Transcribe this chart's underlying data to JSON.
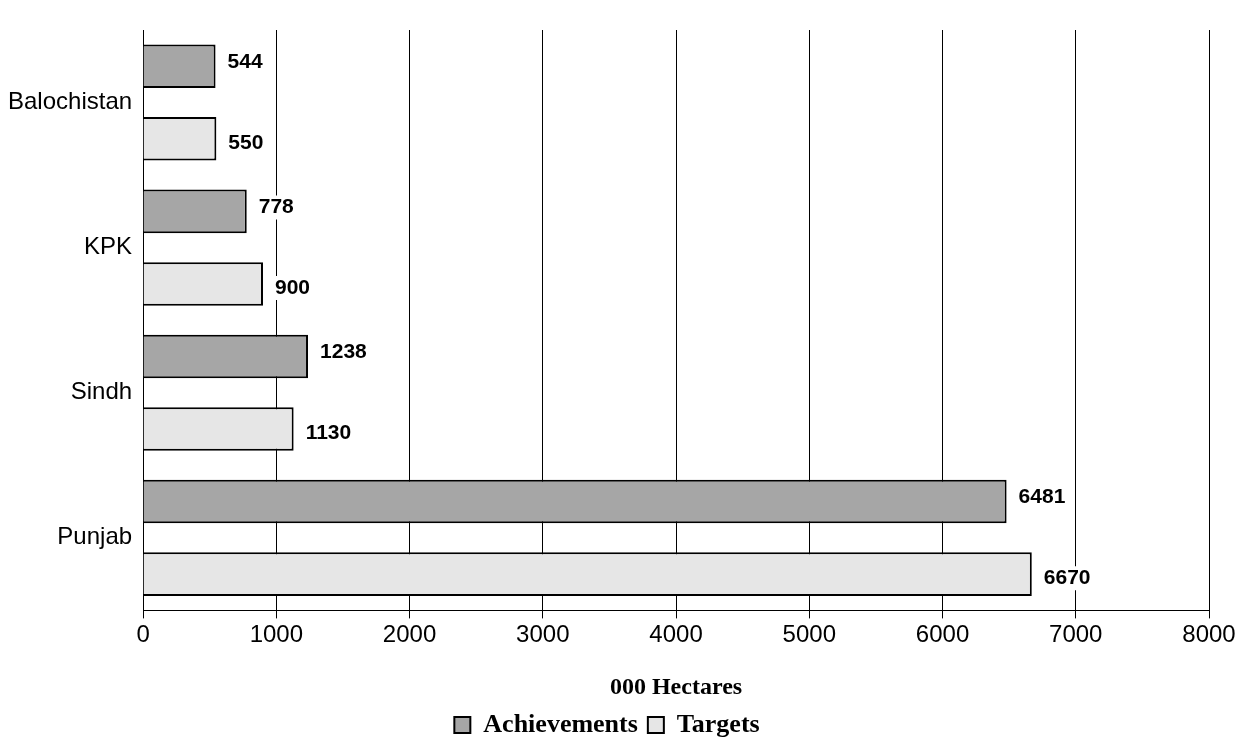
{
  "chart_data": {
    "type": "bar",
    "orientation": "horizontal",
    "xlabel": "000 Hectares",
    "categories": [
      "Balochistan",
      "KPK",
      "Sindh",
      "Punjab"
    ],
    "series": [
      {
        "name": "Achievements",
        "color": "#a6a6a6",
        "values": [
          544,
          778,
          1238,
          6481
        ]
      },
      {
        "name": "Targets",
        "color": "#e6e6e6",
        "values": [
          550,
          900,
          1130,
          6670
        ]
      }
    ],
    "xlim": [
      0,
      8000
    ],
    "xticks": [
      0,
      1000,
      2000,
      3000,
      4000,
      5000,
      6000,
      7000,
      8000
    ],
    "grid": "x",
    "legend": "bottom",
    "data_labels": true
  }
}
